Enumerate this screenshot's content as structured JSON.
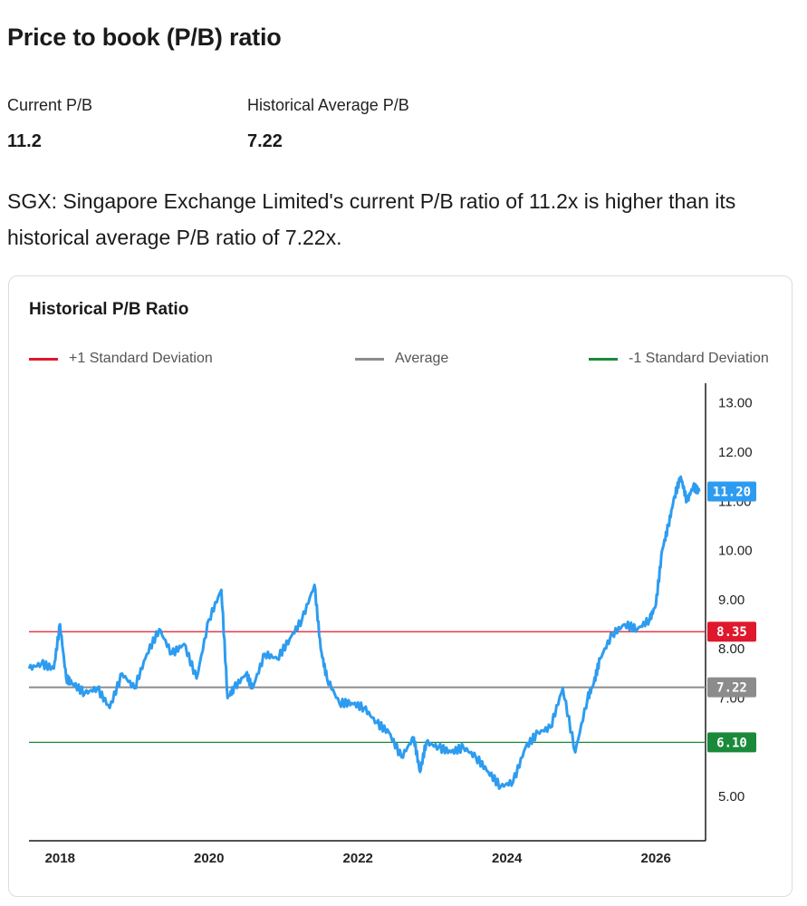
{
  "header": {
    "title": "Price to book (P/B) ratio"
  },
  "stats": {
    "current_label": "Current P/B",
    "current_value": "11.2",
    "average_label": "Historical Average P/B",
    "average_value": "7.22"
  },
  "summary": "SGX: Singapore Exchange Limited's current P/B ratio of 11.2x is higher than its historical average P/B ratio of 7.22x.",
  "colors": {
    "series": "#2d9cf0",
    "plus_sd": "#e0182d",
    "average": "#8c8c8c",
    "minus_sd": "#1a8a3a"
  },
  "chart_data": {
    "type": "line",
    "title": "Historical P/B Ratio",
    "legend": [
      {
        "name": "+1 Standard Deviation",
        "value": 8.35,
        "color": "#e0182d"
      },
      {
        "name": "Average",
        "value": 7.22,
        "color": "#8c8c8c"
      },
      {
        "name": "-1 Standard Deviation",
        "value": 6.1,
        "color": "#1a8a3a"
      }
    ],
    "legend_position": "top",
    "y_axis_position": "right",
    "ylim": [
      4.1,
      13.4
    ],
    "y_ticks": [
      "5.00",
      "6.00",
      "7.00",
      "8.00",
      "9.00",
      "10.00",
      "11.00",
      "12.00",
      "13.00"
    ],
    "x_ticks": [
      "2018",
      "2020",
      "2022",
      "2024",
      "2026"
    ],
    "xlim": [
      "2017-08",
      "2026-09"
    ],
    "current": {
      "value": 11.2,
      "label": "11.20"
    },
    "reference_labels": {
      "plus_sd": "8.35",
      "average": "7.22",
      "minus_sd": "6.10"
    },
    "series": [
      {
        "x": [
          "2017-08",
          "2017-10",
          "2017-12",
          "2018-01",
          "2018-02",
          "2018-03",
          "2018-05",
          "2018-07",
          "2018-09",
          "2018-11",
          "2019-01",
          "2019-03",
          "2019-05",
          "2019-07",
          "2019-09",
          "2019-11",
          "2020-01",
          "2020-03",
          "2020-04",
          "2020-05",
          "2020-07",
          "2020-08",
          "2020-10",
          "2020-12",
          "2021-02",
          "2021-04",
          "2021-06",
          "2021-07",
          "2021-08",
          "2021-10",
          "2021-12",
          "2022-02",
          "2022-04",
          "2022-06",
          "2022-08",
          "2022-10",
          "2022-11",
          "2022-12",
          "2023-02",
          "2023-04",
          "2023-06",
          "2023-08",
          "2023-10",
          "2023-12",
          "2024-02",
          "2024-04",
          "2024-06",
          "2024-08",
          "2024-10",
          "2024-12",
          "2025-02",
          "2025-03",
          "2025-04",
          "2025-06",
          "2025-08",
          "2025-10",
          "2025-12",
          "2026-01",
          "2026-02",
          "2026-03",
          "2026-04",
          "2026-05",
          "2026-06",
          "2026-07",
          "2026-08"
        ],
        "y": [
          7.6,
          7.7,
          7.6,
          8.5,
          7.4,
          7.3,
          7.1,
          7.2,
          6.8,
          7.5,
          7.2,
          7.9,
          8.4,
          7.9,
          8.1,
          7.4,
          8.6,
          9.2,
          7.0,
          7.2,
          7.5,
          7.2,
          7.9,
          7.8,
          8.2,
          8.6,
          9.3,
          8.0,
          7.4,
          6.9,
          6.9,
          6.8,
          6.5,
          6.3,
          5.8,
          6.2,
          5.5,
          6.1,
          6.0,
          5.9,
          6.0,
          5.8,
          5.5,
          5.2,
          5.3,
          6.0,
          6.3,
          6.4,
          7.2,
          5.9,
          7.0,
          7.3,
          7.8,
          8.3,
          8.5,
          8.4,
          8.6,
          8.9,
          10.0,
          10.5,
          11.1,
          11.5,
          11.0,
          11.3,
          11.2
        ]
      }
    ]
  }
}
